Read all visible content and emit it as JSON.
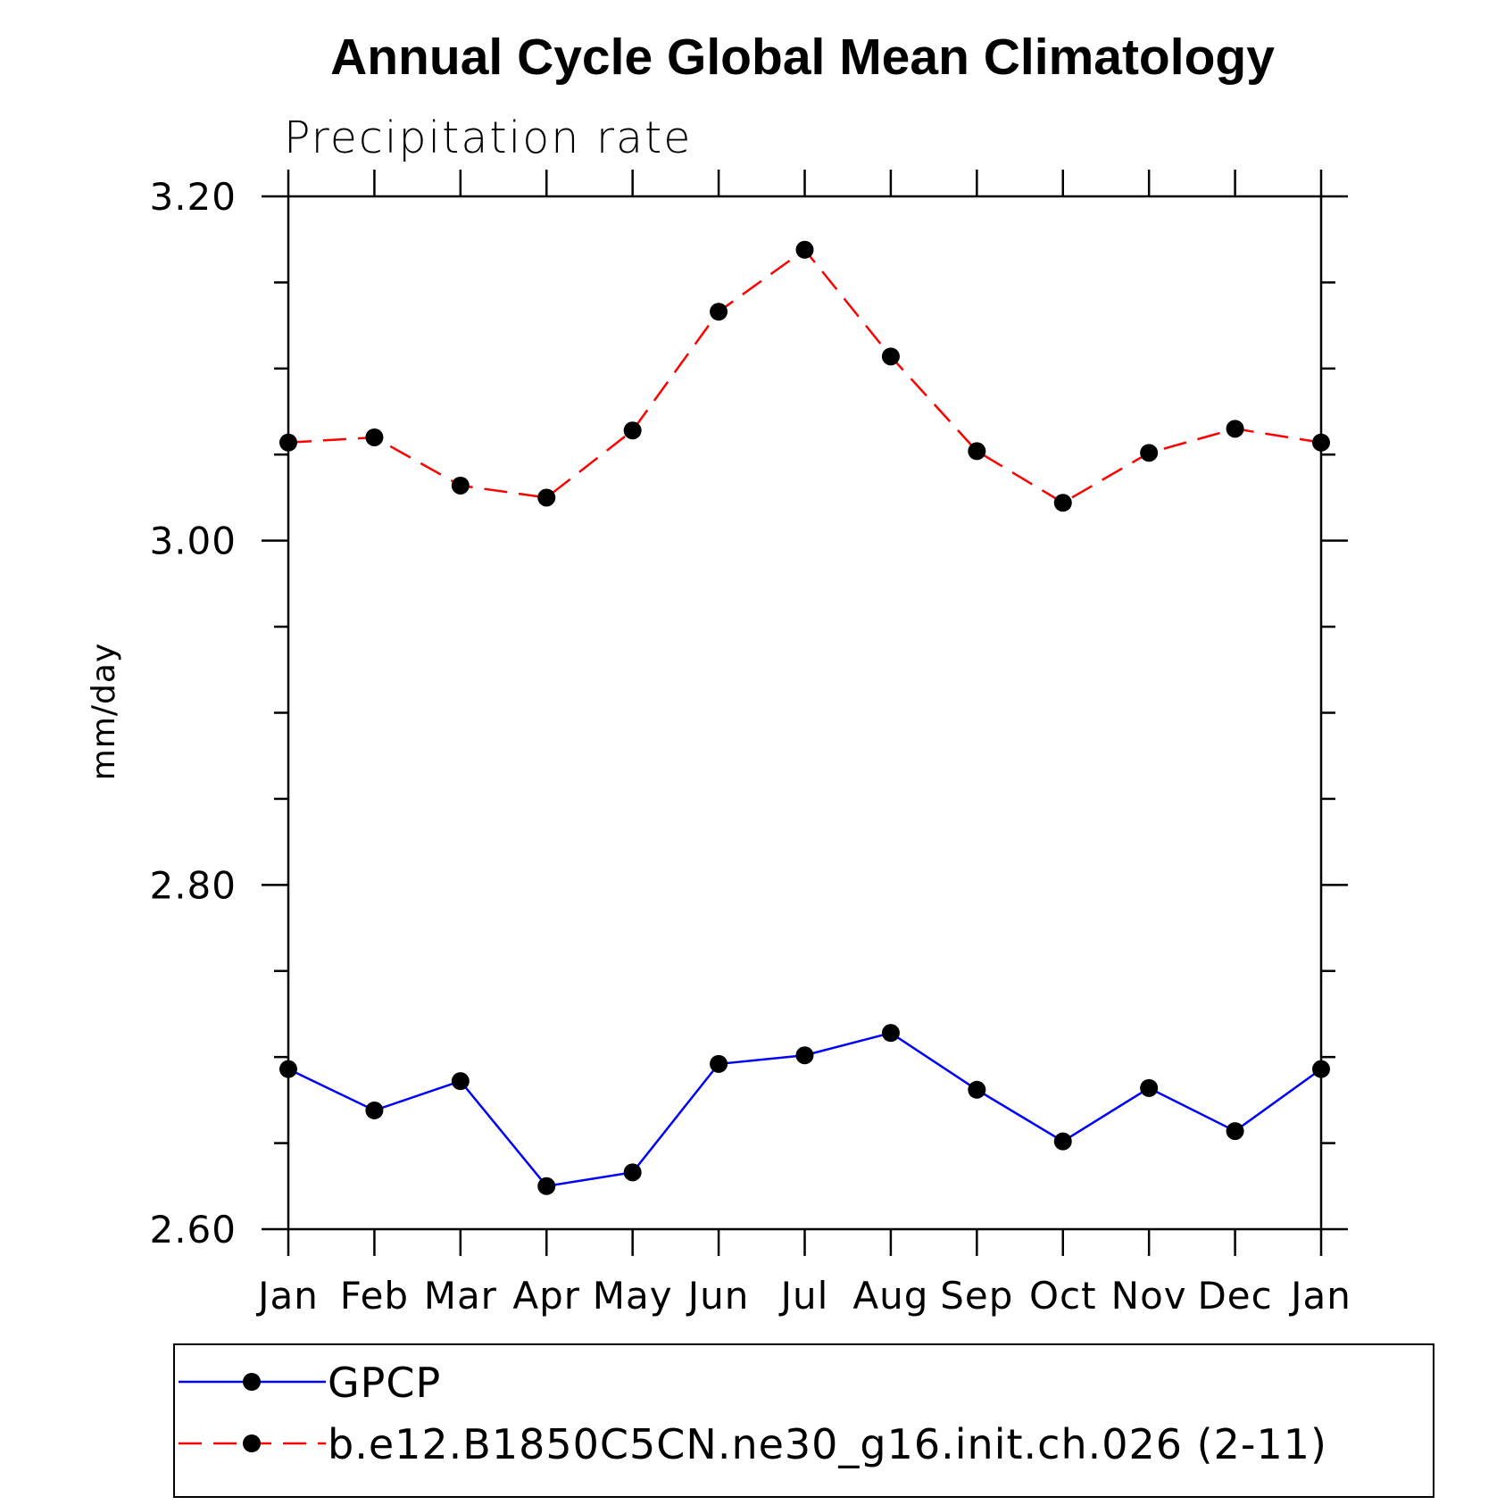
{
  "chart_data": {
    "type": "line",
    "title": "Annual Cycle Global Mean Climatology",
    "subtitle": "Precipitation rate",
    "ylabel": "mm/day",
    "xlabel": "",
    "categories": [
      "Jan",
      "Feb",
      "Mar",
      "Apr",
      "May",
      "Jun",
      "Jul",
      "Aug",
      "Sep",
      "Oct",
      "Nov",
      "Dec",
      "Jan"
    ],
    "ylim": [
      2.6,
      3.2
    ],
    "yticks": [
      "2.60",
      "2.80",
      "3.00",
      "3.20"
    ],
    "y_minor_step": 0.05,
    "grid": false,
    "legend_position": "bottom",
    "series": [
      {
        "name": "GPCP",
        "color": "#0000ff",
        "line_style": "solid",
        "marker": "filled-circle",
        "values": [
          2.693,
          2.669,
          2.686,
          2.625,
          2.633,
          2.696,
          2.701,
          2.714,
          2.681,
          2.651,
          2.682,
          2.657,
          2.693
        ]
      },
      {
        "name": "b.e12.B1850C5CN.ne30_g16.init.ch.026 (2-11)",
        "color": "#ff0000",
        "line_style": "dashed",
        "marker": "filled-circle",
        "values": [
          3.057,
          3.06,
          3.032,
          3.025,
          3.064,
          3.133,
          3.169,
          3.107,
          3.052,
          3.022,
          3.051,
          3.065,
          3.057
        ]
      }
    ]
  }
}
